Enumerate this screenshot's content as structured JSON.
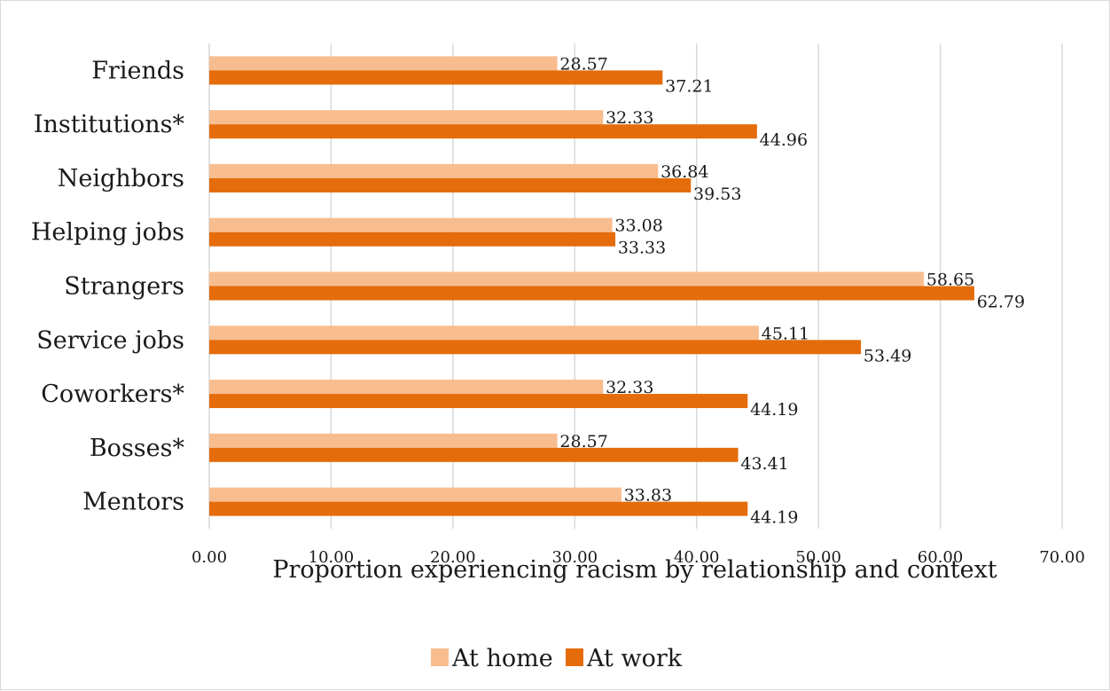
{
  "chart_data": {
    "type": "bar",
    "orientation": "horizontal",
    "categories": [
      "Friends",
      "Institutions*",
      "Neighbors",
      "Helping jobs",
      "Strangers",
      "Service jobs",
      "Coworkers*",
      "Bosses*",
      "Mentors"
    ],
    "series": [
      {
        "name": "At home",
        "color": "#f8bd8f",
        "values": [
          28.57,
          32.33,
          36.84,
          33.08,
          58.65,
          45.11,
          32.33,
          28.57,
          33.83
        ],
        "labels": [
          "28.57",
          "32.33",
          "36.84",
          "33.08",
          "58.65",
          "45.11",
          "32.33",
          "28.57",
          "33.83"
        ]
      },
      {
        "name": "At work",
        "color": "#e46c0a",
        "values": [
          37.21,
          44.96,
          39.53,
          33.33,
          62.79,
          53.49,
          44.19,
          43.41,
          44.19
        ],
        "labels": [
          "37.21",
          "44.96",
          "39.53",
          "33.33",
          "62.79",
          "53.49",
          "44.19",
          "43.41",
          "44.19"
        ]
      }
    ],
    "xlabel": "Proportion experiencing racism by relationship and context",
    "xlim": [
      0,
      70
    ],
    "xticks": [
      0,
      10,
      20,
      30,
      40,
      50,
      60,
      70
    ],
    "xtick_labels": [
      "0.00",
      "10.00",
      "20.00",
      "30.00",
      "40.00",
      "50.00",
      "60.00",
      "70.00"
    ],
    "grid": "vertical",
    "legend_position": "bottom"
  }
}
